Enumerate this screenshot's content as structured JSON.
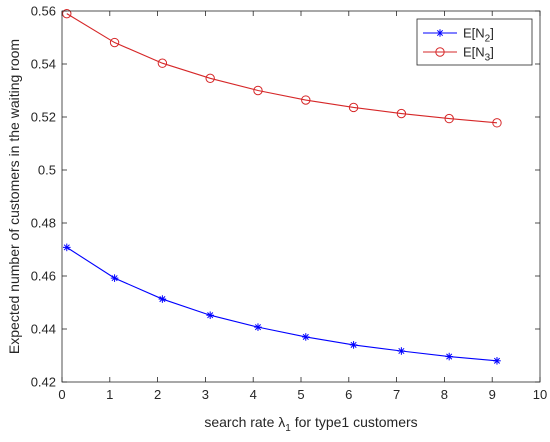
{
  "chart_data": {
    "type": "line",
    "xlabel": "search rate λ1 for type1 customers",
    "xlabel_parts": {
      "pre": "search rate λ",
      "sub": "1",
      "post": " for type1 customers"
    },
    "ylabel": "Expected number of customers in the waiting room",
    "xlim": [
      0,
      10
    ],
    "ylim": [
      0.42,
      0.56
    ],
    "xticks": [
      0,
      1,
      2,
      3,
      4,
      5,
      6,
      7,
      8,
      9,
      10
    ],
    "xtick_labels": [
      "0",
      "1",
      "2",
      "3",
      "4",
      "5",
      "6",
      "7",
      "8",
      "9",
      "10"
    ],
    "yticks": [
      0.42,
      0.44,
      0.46,
      0.48,
      0.5,
      0.52,
      0.54,
      0.56
    ],
    "ytick_labels": [
      "0.42",
      "0.44",
      "0.46",
      "0.48",
      "0.5",
      "0.52",
      "0.54",
      "0.56"
    ],
    "grid": false,
    "legend_position": "top-right",
    "series": [
      {
        "name": "E[N2]",
        "name_parts": {
          "pre": "E[N",
          "sub": "2",
          "post": "]"
        },
        "color": "#0000ff",
        "marker": "asterisk",
        "x": [
          0.1,
          1.1,
          2.1,
          3.1,
          4.1,
          5.1,
          6.1,
          7.1,
          8.1,
          9.1
        ],
        "values": [
          0.4708,
          0.4592,
          0.4513,
          0.4452,
          0.4407,
          0.437,
          0.434,
          0.4317,
          0.4296,
          0.428
        ]
      },
      {
        "name": "E[N3]",
        "name_parts": {
          "pre": "E[N",
          "sub": "3",
          "post": "]"
        },
        "color": "#d62728",
        "marker": "circle",
        "x": [
          0.1,
          1.1,
          2.1,
          3.1,
          4.1,
          5.1,
          6.1,
          7.1,
          8.1,
          9.1
        ],
        "values": [
          0.559,
          0.5481,
          0.5403,
          0.5346,
          0.53,
          0.5264,
          0.5236,
          0.5213,
          0.5194,
          0.5178
        ]
      }
    ]
  }
}
